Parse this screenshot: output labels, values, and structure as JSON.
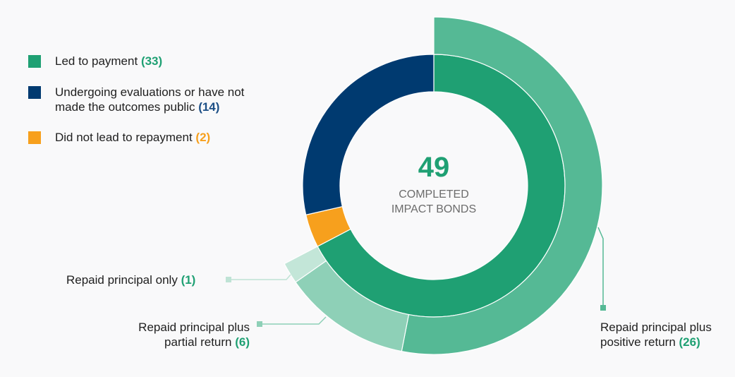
{
  "chart_data": {
    "type": "pie",
    "subtype": "nested-donut",
    "title": "",
    "center": {
      "value": "49",
      "label_line1": "COMPLETED",
      "label_line2": "IMPACT BONDS"
    },
    "inner_ring": {
      "categories": [
        "Led to payment",
        "Did not lead to repayment",
        "Undergoing evaluations or have not made the outcomes public"
      ],
      "values": [
        33,
        2,
        14
      ],
      "colors": [
        "#1fa073",
        "#f7a01d",
        "#003a70"
      ]
    },
    "outer_ring": {
      "parent": "Led to payment",
      "categories": [
        "Repaid principal plus positive return",
        "Repaid principal plus partial return",
        "Repaid principal only"
      ],
      "values": [
        26,
        6,
        1
      ],
      "colors": [
        "#55b995",
        "#8ed0b7",
        "#c3e6d8"
      ]
    },
    "legend_position": "top-left"
  },
  "legend": {
    "items": [
      {
        "label": "Led to payment",
        "count": "(33)",
        "color": "#1fa073"
      },
      {
        "label_line1": "Undergoing evaluations or have not",
        "label_line2": "made the outcomes public",
        "count": "(14)",
        "color": "#003a70"
      },
      {
        "label": "Did not lead to repayment",
        "count": "(2)",
        "color": "#f7a01d"
      }
    ]
  },
  "callouts": {
    "principal_only": {
      "label": "Repaid principal only",
      "count": "(1)"
    },
    "partial_return": {
      "line1": "Repaid principal plus",
      "line2": "partial return",
      "count": "(6)"
    },
    "positive_return": {
      "line1": "Repaid principal plus",
      "line2": "positive return",
      "count": "(26)"
    }
  },
  "colors": {
    "count_green": "#1fa073",
    "count_blue": "#1c4f86",
    "count_orange": "#f7a01d"
  }
}
